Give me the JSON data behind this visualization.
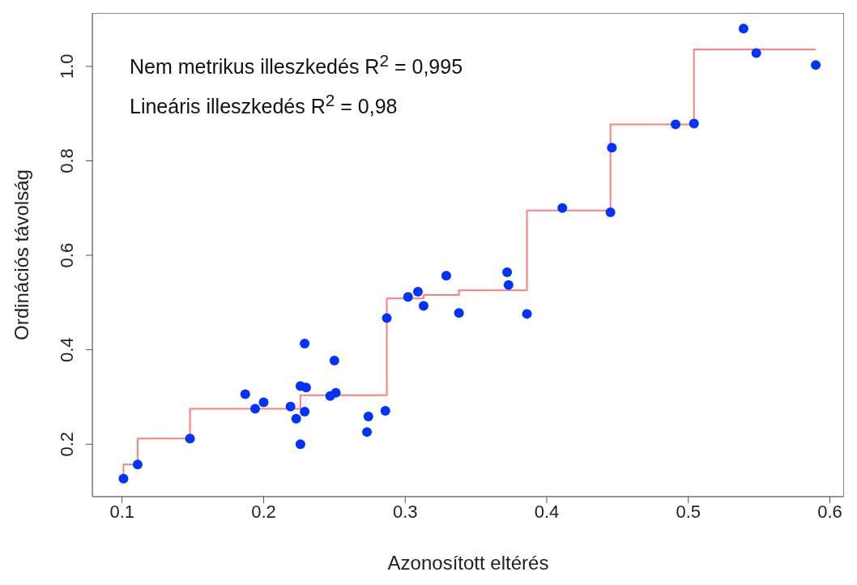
{
  "chart_data": {
    "type": "scatter",
    "xlabel": "Azonosított eltérés",
    "ylabel": "Ordinációs távolság",
    "annotations": [
      "Nem metrikus illeszkedés R$^{2}$ = 0,995",
      "Lineáris illeszkedés R$^{2}$ = 0,98"
    ],
    "xlim": [
      0.079,
      0.61
    ],
    "ylim": [
      0.089,
      1.113
    ],
    "xticks": [
      {
        "value": 0.1,
        "label": "0.1"
      },
      {
        "value": 0.2,
        "label": "0.2"
      },
      {
        "value": 0.3,
        "label": "0.3"
      },
      {
        "value": 0.4,
        "label": "0.4"
      },
      {
        "value": 0.5,
        "label": "0.5"
      },
      {
        "value": 0.6,
        "label": "0.6"
      }
    ],
    "yticks": [
      {
        "value": 0.2,
        "label": "0.2"
      },
      {
        "value": 0.4,
        "label": "0.4"
      },
      {
        "value": 0.6,
        "label": "0.6"
      },
      {
        "value": 0.8,
        "label": "0.8"
      },
      {
        "value": 1.0,
        "label": "1.0"
      }
    ],
    "grid": false,
    "legend": false,
    "marker": "circle",
    "series": [
      {
        "color": "#0033ff",
        "x": [
          0.101,
          0.111,
          0.148,
          0.187,
          0.194,
          0.2,
          0.219,
          0.223,
          0.226,
          0.226,
          0.229,
          0.23,
          0.229,
          0.247,
          0.251,
          0.25,
          0.273,
          0.274,
          0.286,
          0.287,
          0.302,
          0.309,
          0.313,
          0.329,
          0.338,
          0.372,
          0.373,
          0.386,
          0.411,
          0.445,
          0.446,
          0.491,
          0.504,
          0.539,
          0.548,
          0.59
        ],
        "values": [
          0.127,
          0.157,
          0.212,
          0.306,
          0.275,
          0.289,
          0.28,
          0.254,
          0.323,
          0.2,
          0.413,
          0.32,
          0.269,
          0.302,
          0.309,
          0.377,
          0.226,
          0.259,
          0.271,
          0.467,
          0.512,
          0.523,
          0.493,
          0.557,
          0.478,
          0.564,
          0.537,
          0.476,
          0.7,
          0.691,
          0.828,
          0.877,
          0.879,
          1.08,
          1.028,
          1.003
        ]
      },
      {
        "type": "step",
        "color": "#ff7f7f",
        "marker": "none",
        "x": [
          0.101,
          0.101,
          0.111,
          0.148,
          0.226,
          0.287,
          0.313,
          0.338,
          0.386,
          0.445,
          0.504,
          0.59
        ],
        "values": [
          0.127,
          0.157,
          0.212,
          0.275,
          0.304,
          0.509,
          0.516,
          0.526,
          0.695,
          0.877,
          1.036,
          1.036
        ]
      }
    ]
  }
}
